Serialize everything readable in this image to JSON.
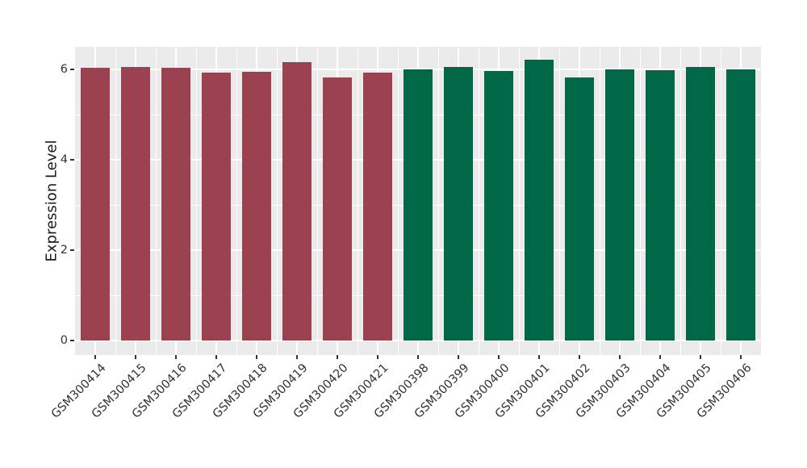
{
  "chart_data": {
    "type": "bar",
    "title": "",
    "xlabel": "",
    "ylabel": "Expression Level",
    "ylim": [
      0,
      6.5
    ],
    "yticks": [
      0,
      2,
      4,
      6
    ],
    "yticks_minor": [
      1,
      3,
      5
    ],
    "grid": true,
    "legend": "none",
    "categories": [
      "GSM300414",
      "GSM300415",
      "GSM300416",
      "GSM300417",
      "GSM300418",
      "GSM300419",
      "GSM300420",
      "GSM300421",
      "GSM300398",
      "GSM300399",
      "GSM300400",
      "GSM300401",
      "GSM300402",
      "GSM300403",
      "GSM300404",
      "GSM300405",
      "GSM300406"
    ],
    "values": [
      6.03,
      6.06,
      6.03,
      5.93,
      5.95,
      6.16,
      5.83,
      5.93,
      6.0,
      6.06,
      5.96,
      6.22,
      5.83,
      6.0,
      5.98,
      6.06,
      6.0
    ],
    "groups": [
      "group1",
      "group1",
      "group1",
      "group1",
      "group1",
      "group1",
      "group1",
      "group1",
      "group2",
      "group2",
      "group2",
      "group2",
      "group2",
      "group2",
      "group2",
      "group2",
      "group2"
    ],
    "group_colors": {
      "group1": "#9C4150",
      "group2": "#006847"
    }
  },
  "style": {
    "figure_bg": "#FFFFFF",
    "panel_bg": "#EBEBEB",
    "grid_color": "#FFFFFF",
    "tick_color": "#333333",
    "tick_label_color": "#333333",
    "axis_title_color": "#1A1A1A"
  }
}
